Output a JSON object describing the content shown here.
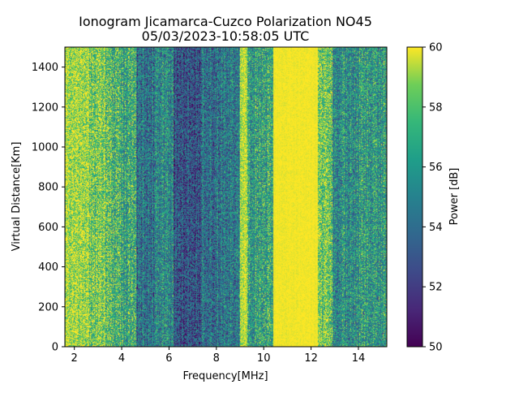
{
  "chart_data": {
    "type": "heatmap",
    "title": "Ionogram Jicamarca-Cuzco Polarization NO45",
    "subtitle": "05/03/2023-10:58:05 UTC",
    "xlabel": "Frequency[MHz]",
    "ylabel": "Virtual Distance[Km]",
    "xlim": [
      1.6,
      15.2
    ],
    "ylim": [
      0,
      1500
    ],
    "x_ticks": [
      2,
      4,
      6,
      8,
      10,
      12,
      14
    ],
    "y_ticks": [
      0,
      200,
      400,
      600,
      800,
      1000,
      1200,
      1400
    ],
    "colorbar": {
      "label": "Power [dB]",
      "min": 50,
      "max": 60,
      "ticks": [
        50,
        52,
        54,
        56,
        58,
        60
      ],
      "colormap": "viridis"
    },
    "bands": [
      {
        "from": 1.6,
        "to": 2.6,
        "mean_db": 59.3,
        "spread": 0.8
      },
      {
        "from": 2.6,
        "to": 3.3,
        "mean_db": 58.4,
        "spread": 0.9
      },
      {
        "from": 3.3,
        "to": 3.9,
        "mean_db": 57.5,
        "spread": 1.0
      },
      {
        "from": 3.9,
        "to": 4.6,
        "mean_db": 56.6,
        "spread": 1.0
      },
      {
        "from": 4.6,
        "to": 5.4,
        "mean_db": 54.2,
        "spread": 1.0
      },
      {
        "from": 5.4,
        "to": 6.2,
        "mean_db": 55.2,
        "spread": 1.0
      },
      {
        "from": 6.2,
        "to": 7.4,
        "mean_db": 53.1,
        "spread": 1.0
      },
      {
        "from": 7.4,
        "to": 8.2,
        "mean_db": 54.3,
        "spread": 1.0
      },
      {
        "from": 8.2,
        "to": 9.0,
        "mean_db": 54.8,
        "spread": 1.0
      },
      {
        "from": 9.0,
        "to": 9.3,
        "mean_db": 59.6,
        "spread": 0.5
      },
      {
        "from": 9.3,
        "to": 10.4,
        "mean_db": 56.5,
        "spread": 1.0
      },
      {
        "from": 10.4,
        "to": 12.3,
        "mean_db": 59.95,
        "spread": 0.1
      },
      {
        "from": 12.3,
        "to": 12.9,
        "mean_db": 58.3,
        "spread": 0.9
      },
      {
        "from": 12.9,
        "to": 14.0,
        "mean_db": 55.6,
        "spread": 1.0
      },
      {
        "from": 14.0,
        "to": 15.2,
        "mean_db": 56.0,
        "spread": 1.0
      }
    ]
  }
}
